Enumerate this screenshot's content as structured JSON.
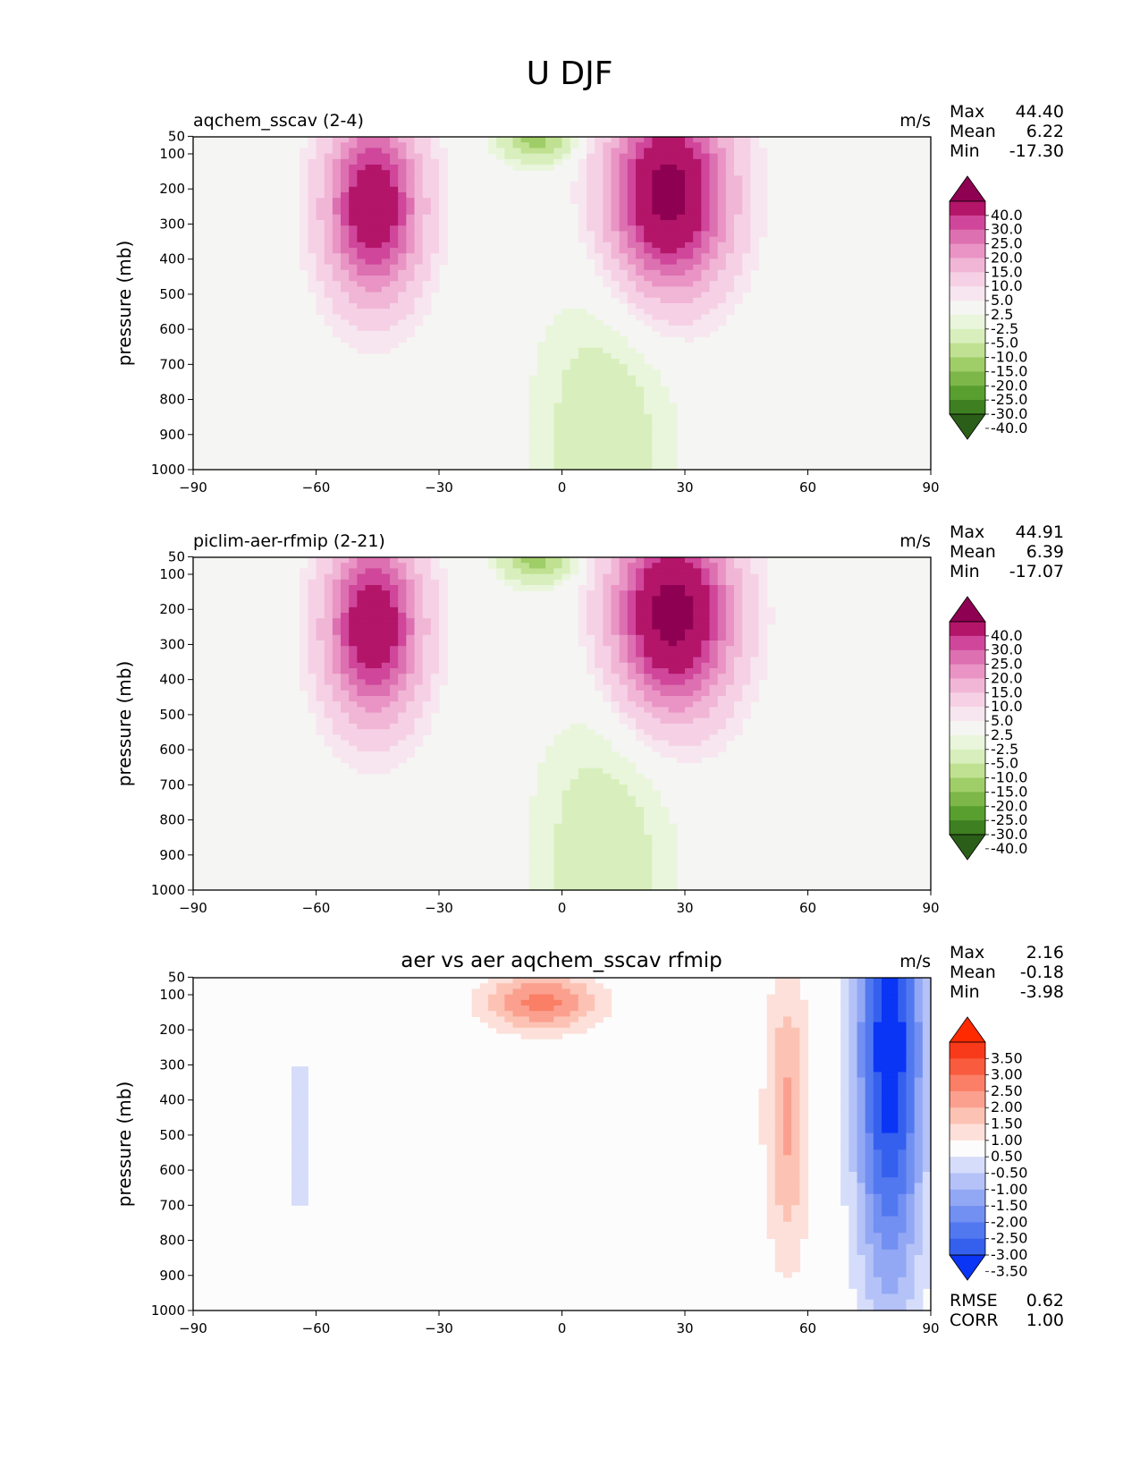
{
  "figure_title": "U DJF",
  "colors": {
    "field_levels": [
      -40,
      -30,
      -25,
      -20,
      -15,
      -10,
      -5,
      -2.5,
      2.5,
      5,
      10,
      15,
      20,
      25,
      30,
      40
    ],
    "field_palette": [
      "#2b5e18",
      "#3d7f21",
      "#599f30",
      "#7db74a",
      "#9fcd68",
      "#bfe191",
      "#d8efbd",
      "#e9f6dc",
      "#f5f5f3",
      "#f7e6ef",
      "#f6d1e5",
      "#f1b6d6",
      "#e994c4",
      "#dd70b0",
      "#cf469b",
      "#b31568",
      "#8e0152"
    ],
    "diff_levels": [
      -3.5,
      -3,
      -2.5,
      -2,
      -1.5,
      -1,
      -0.5,
      0.5,
      1,
      1.5,
      2,
      2.5,
      3,
      3.5
    ],
    "diff_palette": [
      "#0a35f5",
      "#3560ee",
      "#5278f0",
      "#728ff2",
      "#93a8f4",
      "#b4c2f7",
      "#d5ddfa",
      "#fcfcfc",
      "#fde0da",
      "#fcc3b5",
      "#fba08f",
      "#fa7f66",
      "#f95b3f",
      "#f83a1a",
      "#ff2a00"
    ]
  },
  "chart_data": [
    {
      "type": "contour",
      "title": "aqchem_sscav (2-4)",
      "units": "m/s",
      "xlabel": "",
      "ylabel": "pressure (mb)",
      "xlim": [
        -90,
        90
      ],
      "ylim": [
        1000,
        50
      ],
      "xticks": [
        "−90",
        "−60",
        "−30",
        "0",
        "30",
        "60",
        "90"
      ],
      "yticks": [
        "50",
        "100",
        "200",
        "300",
        "400",
        "500",
        "600",
        "700",
        "800",
        "900",
        "1000"
      ],
      "stats": {
        "max_label": "Max",
        "max": "44.40",
        "mean_label": "Mean",
        "mean": "6.22",
        "min_label": "Min",
        "min": "-17.30"
      },
      "colorbar_labels": [
        "40.0",
        "30.0",
        "25.0",
        "20.0",
        "15.0",
        "10.0",
        "5.0",
        "2.5",
        "-2.5",
        "-5.0",
        "-10.0",
        "-15.0",
        "-20.0",
        "-25.0",
        "-30.0",
        "-40.0"
      ],
      "features": [
        {
          "lat": -46,
          "p": 250,
          "amp": 38,
          "wlat": 8,
          "wp": 180
        },
        {
          "lat": 26,
          "p": 215,
          "amp": 44.4,
          "wlat": 10,
          "wp": 190
        },
        {
          "lat": -6,
          "p": 60,
          "amp": -17.3,
          "wlat": 6,
          "wp": 45
        },
        {
          "lat": 10,
          "p": 900,
          "amp": -8,
          "wlat": 12,
          "wp": 300
        }
      ]
    },
    {
      "type": "contour",
      "title": "piclim-aer-rfmip (2-21)",
      "units": "m/s",
      "xlabel": "",
      "ylabel": "pressure (mb)",
      "xlim": [
        -90,
        90
      ],
      "ylim": [
        1000,
        50
      ],
      "xticks": [
        "−90",
        "−60",
        "−30",
        "0",
        "30",
        "60",
        "90"
      ],
      "yticks": [
        "50",
        "100",
        "200",
        "300",
        "400",
        "500",
        "600",
        "700",
        "800",
        "900",
        "1000"
      ],
      "stats": {
        "max_label": "Max",
        "max": "44.91",
        "mean_label": "Mean",
        "mean": "6.39",
        "min_label": "Min",
        "min": "-17.07"
      },
      "colorbar_labels": [
        "40.0",
        "30.0",
        "25.0",
        "20.0",
        "15.0",
        "10.0",
        "5.0",
        "2.5",
        "-2.5",
        "-5.0",
        "-10.0",
        "-15.0",
        "-20.0",
        "-25.0",
        "-30.0",
        "-40.0"
      ],
      "features": [
        {
          "lat": -46,
          "p": 250,
          "amp": 38,
          "wlat": 8,
          "wp": 180
        },
        {
          "lat": 27,
          "p": 215,
          "amp": 44.9,
          "wlat": 10,
          "wp": 190
        },
        {
          "lat": -6,
          "p": 60,
          "amp": -17.1,
          "wlat": 6,
          "wp": 45
        },
        {
          "lat": 10,
          "p": 900,
          "amp": -8,
          "wlat": 12,
          "wp": 300
        }
      ]
    },
    {
      "type": "contour",
      "title": "aer vs aer aqchem_sscav rfmip",
      "units": "m/s",
      "xlabel": "",
      "ylabel": "pressure (mb)",
      "xlim": [
        -90,
        90
      ],
      "ylim": [
        1000,
        50
      ],
      "xticks": [
        "−90",
        "−60",
        "−30",
        "0",
        "30",
        "60",
        "90"
      ],
      "yticks": [
        "50",
        "100",
        "200",
        "300",
        "400",
        "500",
        "600",
        "700",
        "800",
        "900",
        "1000"
      ],
      "stats": {
        "max_label": "Max",
        "max": "2.16",
        "mean_label": "Mean",
        "mean": "-0.18",
        "min_label": "Min",
        "min": "-3.98"
      },
      "metrics": {
        "rmse_label": "RMSE",
        "rmse": "0.62",
        "corr_label": "CORR",
        "corr": "1.00"
      },
      "colorbar_labels": [
        "3.50",
        "3.00",
        "2.50",
        "2.00",
        "1.50",
        "1.00",
        "0.50",
        "-0.50",
        "-1.00",
        "-1.50",
        "-2.00",
        "-2.50",
        "-3.00",
        "-3.50"
      ],
      "features": [
        {
          "lat": 80,
          "p": 250,
          "amp": -4,
          "wlat": 6,
          "wp": 500
        },
        {
          "lat": 55,
          "p": 450,
          "amp": 1.6,
          "wlat": 4,
          "wp": 300
        },
        {
          "lat": -5,
          "p": 120,
          "amp": 2.2,
          "wlat": 10,
          "wp": 60
        },
        {
          "lat": -64,
          "p": 500,
          "amp": -0.6,
          "wlat": 3,
          "wp": 400
        }
      ]
    }
  ]
}
